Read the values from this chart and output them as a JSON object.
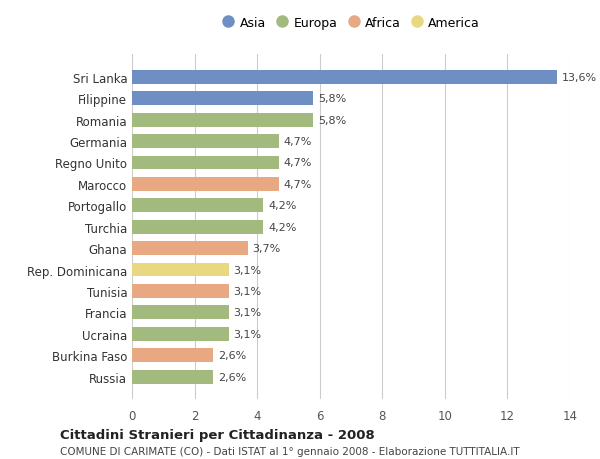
{
  "countries": [
    "Sri Lanka",
    "Filippine",
    "Romania",
    "Germania",
    "Regno Unito",
    "Marocco",
    "Portogallo",
    "Turchia",
    "Ghana",
    "Rep. Dominicana",
    "Tunisia",
    "Francia",
    "Ucraina",
    "Burkina Faso",
    "Russia"
  ],
  "values": [
    13.6,
    5.8,
    5.8,
    4.7,
    4.7,
    4.7,
    4.2,
    4.2,
    3.7,
    3.1,
    3.1,
    3.1,
    3.1,
    2.6,
    2.6
  ],
  "labels": [
    "13,6%",
    "5,8%",
    "5,8%",
    "4,7%",
    "4,7%",
    "4,7%",
    "4,2%",
    "4,2%",
    "3,7%",
    "3,1%",
    "3,1%",
    "3,1%",
    "3,1%",
    "2,6%",
    "2,6%"
  ],
  "continents": [
    "Asia",
    "Asia",
    "Europa",
    "Europa",
    "Europa",
    "Africa",
    "Europa",
    "Europa",
    "Africa",
    "America",
    "Africa",
    "Europa",
    "Europa",
    "Africa",
    "Europa"
  ],
  "continent_colors": {
    "Asia": "#6f8fc4",
    "Europa": "#a3ba7e",
    "Africa": "#e8a882",
    "America": "#e8d882"
  },
  "legend_order": [
    "Asia",
    "Europa",
    "Africa",
    "America"
  ],
  "title": "Cittadini Stranieri per Cittadinanza - 2008",
  "subtitle": "COMUNE DI CARIMATE (CO) - Dati ISTAT al 1° gennaio 2008 - Elaborazione TUTTITALIA.IT",
  "xlim": [
    0,
    14
  ],
  "xticks": [
    0,
    2,
    4,
    6,
    8,
    10,
    12,
    14
  ],
  "bg_color": "#ffffff",
  "grid_color": "#cccccc",
  "bar_height": 0.65
}
